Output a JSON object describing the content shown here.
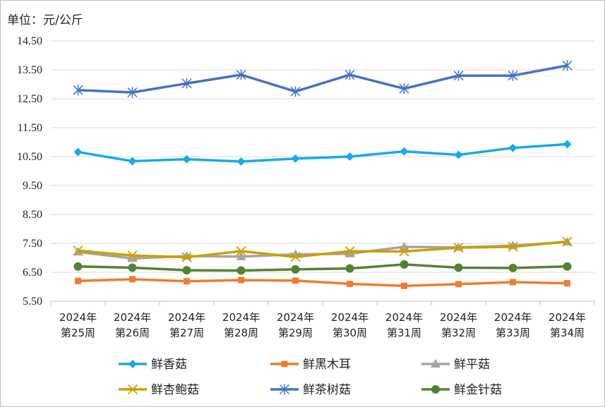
{
  "unit_label": "单位：元/公斤",
  "chart_data": {
    "type": "line",
    "title": "",
    "xlabel": "",
    "ylabel": "",
    "ylim": [
      5.5,
      14.5
    ],
    "yticks": [
      "14.50",
      "13.50",
      "12.50",
      "11.50",
      "10.50",
      "9.50",
      "8.50",
      "7.50",
      "6.50",
      "5.50"
    ],
    "grid": "horizontal",
    "legend_position": "bottom",
    "categories": [
      [
        "2024年",
        "第25周"
      ],
      [
        "2024年",
        "第26周"
      ],
      [
        "2024年",
        "第27周"
      ],
      [
        "2024年",
        "第28周"
      ],
      [
        "2024年",
        "第29周"
      ],
      [
        "2024年",
        "第30周"
      ],
      [
        "2024年",
        "第31周"
      ],
      [
        "2024年",
        "第32周"
      ],
      [
        "2024年",
        "第33周"
      ],
      [
        "2024年",
        "第34周"
      ]
    ],
    "series": [
      {
        "name": "鲜香菇",
        "color": "#18AAE6",
        "marker": "diamond",
        "values": [
          10.66,
          10.34,
          10.41,
          10.33,
          10.43,
          10.5,
          10.68,
          10.56,
          10.8,
          10.93
        ]
      },
      {
        "name": "鲜黑木耳",
        "color": "#ED7D31",
        "marker": "square",
        "values": [
          6.2,
          6.26,
          6.19,
          6.23,
          6.21,
          6.1,
          6.03,
          6.09,
          6.16,
          6.12
        ]
      },
      {
        "name": "鲜平菇",
        "color": "#A5A5A5",
        "marker": "triangle",
        "values": [
          7.2,
          6.98,
          7.06,
          7.04,
          7.12,
          7.14,
          7.38,
          7.36,
          7.42,
          7.55
        ]
      },
      {
        "name": "鲜杏鲍菇",
        "color": "#C9A000",
        "marker": "x",
        "values": [
          7.25,
          7.08,
          7.02,
          7.23,
          7.03,
          7.23,
          7.22,
          7.35,
          7.38,
          7.56
        ]
      },
      {
        "name": "鲜茶树菇",
        "color": "#4472C4",
        "marker": "star",
        "values": [
          12.8,
          12.72,
          13.03,
          13.33,
          12.75,
          13.33,
          12.85,
          13.3,
          13.3,
          13.65
        ]
      },
      {
        "name": "鲜金针菇",
        "color": "#548235",
        "marker": "circle",
        "values": [
          6.7,
          6.66,
          6.57,
          6.56,
          6.6,
          6.63,
          6.77,
          6.66,
          6.65,
          6.7
        ]
      }
    ]
  }
}
